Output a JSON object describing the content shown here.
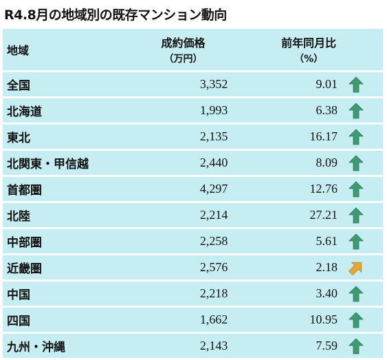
{
  "title": "R4.8月の地域別の既存マンション動向",
  "colors": {
    "row_bg": "#c6eef2",
    "up_arrow": "#3f9a74",
    "flat_arrow": "#e7a63a"
  },
  "headers": {
    "region": "地域",
    "price": "成約価格",
    "price_unit": "（万円）",
    "yoy": "前年同月比",
    "yoy_unit": "（%）"
  },
  "chart_data": {
    "type": "table",
    "columns": [
      "地域",
      "成約価格（万円）",
      "前年同月比（%）"
    ],
    "rows": [
      {
        "region": "全国",
        "price": "3,352",
        "yoy": "9.01",
        "trend": "up"
      },
      {
        "region": "北海道",
        "price": "1,993",
        "yoy": "6.38",
        "trend": "up"
      },
      {
        "region": "東北",
        "price": "2,135",
        "yoy": "16.17",
        "trend": "up"
      },
      {
        "region": "北関東・甲信越",
        "price": "2,440",
        "yoy": "8.09",
        "trend": "up"
      },
      {
        "region": "首都圏",
        "price": "4,297",
        "yoy": "12.76",
        "trend": "up"
      },
      {
        "region": "北陸",
        "price": "2,214",
        "yoy": "27.21",
        "trend": "up"
      },
      {
        "region": "中部圏",
        "price": "2,258",
        "yoy": "5.61",
        "trend": "up"
      },
      {
        "region": "近畿圏",
        "price": "2,576",
        "yoy": "2.18",
        "trend": "up-right"
      },
      {
        "region": "中国",
        "price": "2,218",
        "yoy": "3.40",
        "trend": "up"
      },
      {
        "region": "四国",
        "price": "1,662",
        "yoy": "10.95",
        "trend": "up"
      },
      {
        "region": "九州・沖縄",
        "price": "2,143",
        "yoy": "7.59",
        "trend": "up"
      }
    ]
  }
}
